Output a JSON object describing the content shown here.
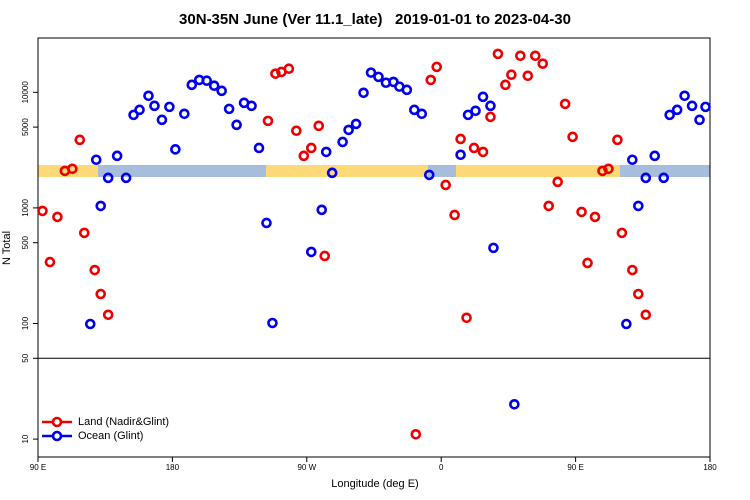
{
  "chart_data": {
    "type": "scatter",
    "title": "30N-35N June (Ver 11.1_late)   2019-01-01 to 2023-04-30",
    "x_label": "Longitude (deg E)",
    "y_label": "N Total",
    "log_y": true,
    "hline": 50,
    "legend": "bottom-left",
    "xlim": [
      90,
      540
    ],
    "xticks": [
      {
        "value": 90,
        "label": "90 E"
      },
      180,
      {
        "value": 270,
        "label": "90 W"
      },
      {
        "value": 360,
        "label": "0"
      },
      {
        "value": 450,
        "label": "90 E"
      },
      {
        "value": 540,
        "label": "180"
      }
    ],
    "ylim": [
      7,
      29500
    ],
    "yticks": [
      10,
      50,
      100,
      500,
      1000,
      5000,
      10000
    ],
    "series": [
      {
        "name": "Land (Nadir&Glint)",
        "color": "#ee0000",
        "x": [
          93,
          98,
          103,
          108,
          113,
          118,
          121,
          128,
          132,
          137,
          244,
          249,
          253,
          258,
          263,
          268,
          273,
          278,
          282,
          343,
          353,
          357,
          363,
          369,
          373,
          377,
          382,
          388,
          393,
          398,
          403,
          407,
          413,
          418,
          423,
          428,
          432,
          438,
          443,
          448,
          454,
          458,
          463,
          468,
          472,
          478,
          481,
          488,
          492,
          497
        ],
        "values": [
          942,
          340,
          836,
          2090,
          2180,
          3880,
          608,
          290,
          180,
          119,
          5660,
          14500,
          15000,
          16000,
          4650,
          2820,
          3300,
          5130,
          384,
          11,
          12800,
          16600,
          1580,
          869,
          3950,
          112,
          3300,
          3050,
          6130,
          21500,
          11600,
          14200,
          20700,
          13900,
          20700,
          17700,
          1040,
          1680,
          7940,
          4120,
          923,
          334,
          836,
          2090,
          2180,
          3880,
          608,
          290,
          180,
          119
        ]
      },
      {
        "name": "Ocean (Glint)",
        "color": "#0000ee",
        "x": [
          125,
          129,
          132,
          137,
          143,
          149,
          154,
          158,
          164,
          168,
          173,
          178,
          182,
          188,
          193,
          198,
          203,
          208,
          213,
          218,
          223,
          228,
          233,
          238,
          243,
          247,
          273,
          280,
          283,
          287,
          294,
          298,
          303,
          308,
          313,
          318,
          323,
          328,
          332,
          337,
          342,
          347,
          352,
          373,
          378,
          383,
          388,
          393,
          395,
          409,
          484,
          488,
          492,
          497,
          503,
          509,
          513,
          518,
          523,
          528,
          533,
          537
        ],
        "values": [
          99,
          2610,
          1040,
          1820,
          2820,
          1820,
          6380,
          7050,
          9330,
          7640,
          5780,
          7480,
          3210,
          6520,
          11600,
          12800,
          12600,
          11400,
          10300,
          7190,
          5230,
          8110,
          7640,
          3300,
          741,
          101,
          416,
          962,
          3050,
          2010,
          3720,
          4730,
          5330,
          9910,
          14800,
          13600,
          12100,
          12300,
          11200,
          10500,
          7050,
          6520,
          1930,
          2880,
          6380,
          6920,
          9140,
          7640,
          451,
          20,
          99,
          2610,
          1040,
          1820,
          2820,
          1820,
          6380,
          7050,
          9330,
          7640,
          5780,
          7480
        ]
      }
    ]
  }
}
